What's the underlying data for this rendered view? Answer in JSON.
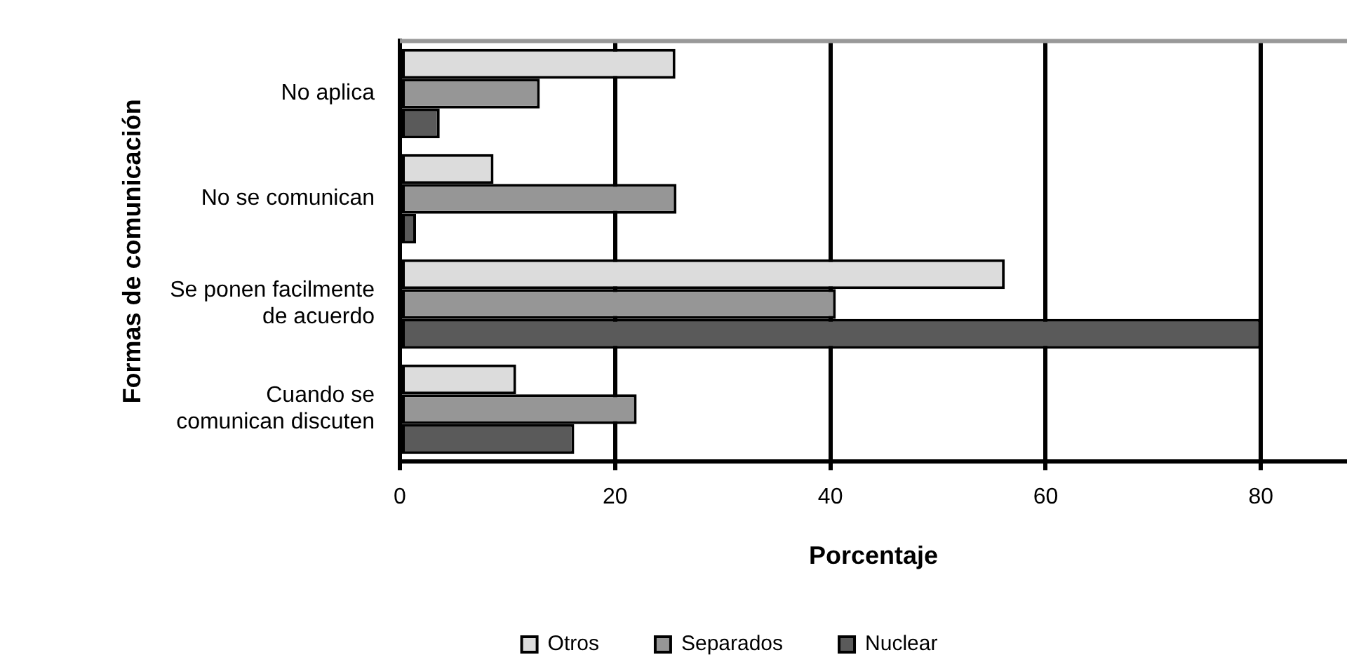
{
  "chart_data": {
    "type": "bar",
    "orientation": "horizontal",
    "xlabel": "Porcentaje",
    "ylabel": "Formas de comunicación",
    "categories": [
      "No aplica",
      "No se comunican",
      "Se ponen facilmente de acuerdo",
      "Cuando se comunican discuten"
    ],
    "series": [
      {
        "name": "Otros",
        "color": "#dcdcdc",
        "values": [
          25.6,
          8.7,
          56.2,
          10.8
        ]
      },
      {
        "name": "Separados",
        "color": "#969696",
        "values": [
          13,
          25.7,
          40.5,
          22
        ]
      },
      {
        "name": "Nuclear",
        "color": "#5a5a5a",
        "values": [
          3.7,
          1.5,
          80,
          16.2
        ]
      }
    ],
    "xlim": [
      0,
      88
    ],
    "xticks": [
      0,
      20,
      40,
      60,
      80
    ],
    "grid": "x",
    "legend": "bottom"
  }
}
